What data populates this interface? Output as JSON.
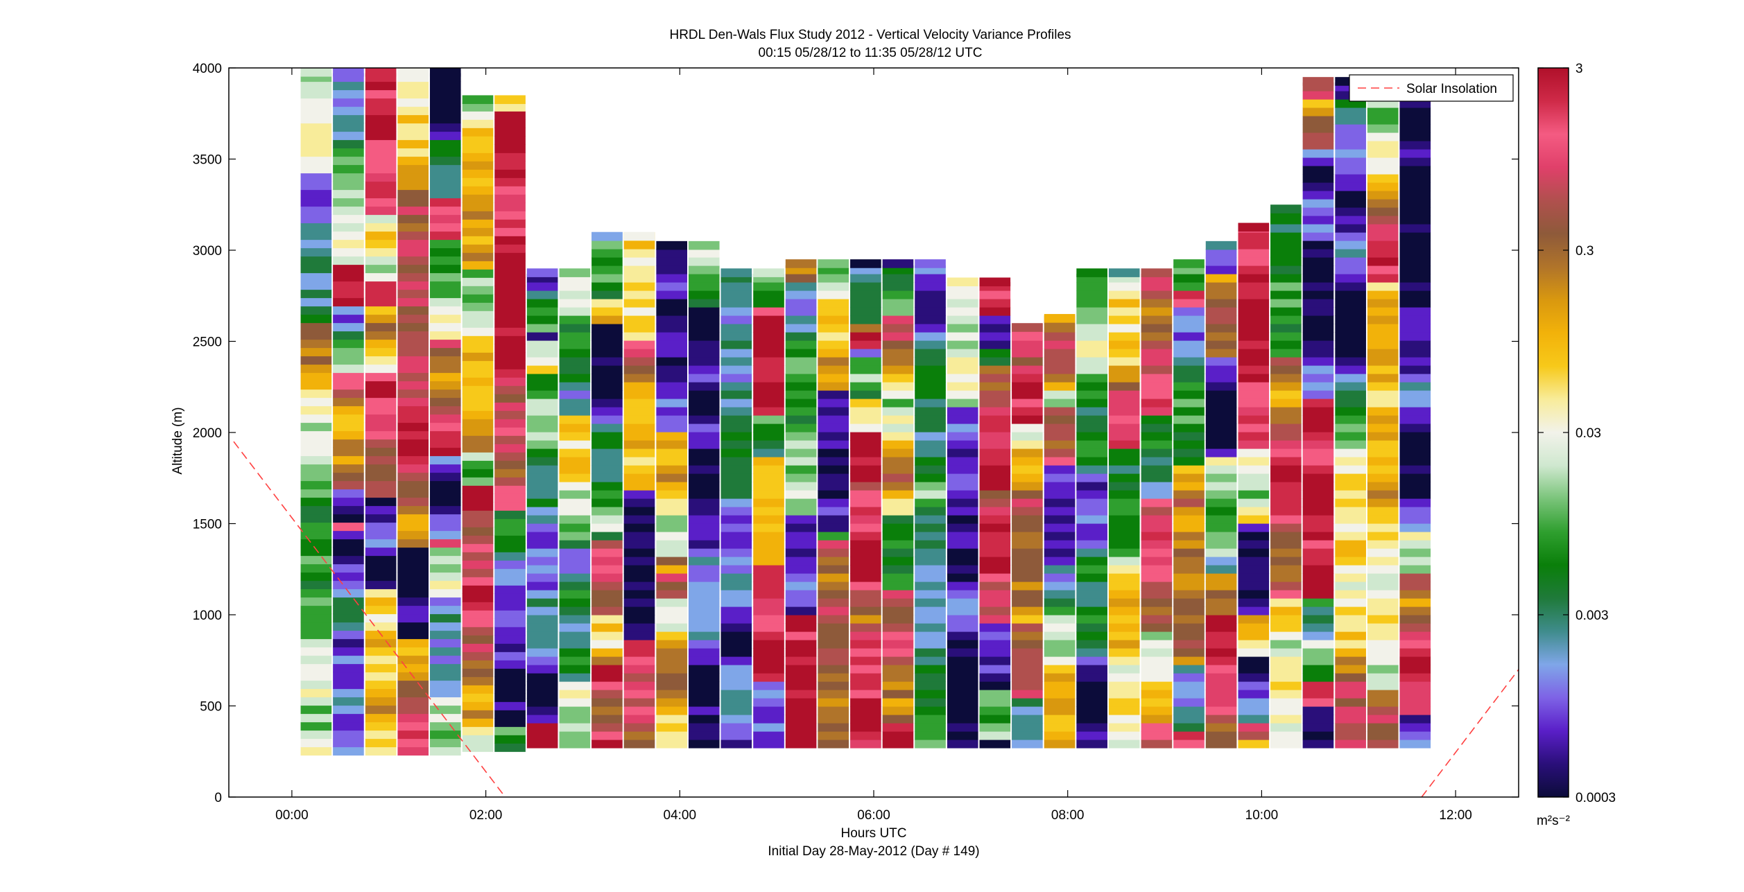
{
  "chart_data": {
    "type": "heatmap",
    "title": "HRDL Den-Wals Flux Study 2012 - Vertical Velocity Variance Profiles",
    "subtitle": "00:15 05/28/12 to 11:35 05/28/12  UTC",
    "xlabel": "Hours UTC",
    "xlabel2": "Initial Day 28-May-2012 (Day # 149)",
    "ylabel": "Altitude (m)",
    "xlim": [
      -0.65,
      12.65
    ],
    "ylim": [
      0,
      4000
    ],
    "x_ticks": [
      0,
      2,
      4,
      6,
      8,
      10,
      12
    ],
    "x_tick_labels": [
      "00:00",
      "02:00",
      "04:00",
      "06:00",
      "08:00",
      "10:00",
      "12:00"
    ],
    "y_ticks": [
      0,
      500,
      1000,
      1500,
      2000,
      2500,
      3000,
      3500,
      4000
    ],
    "y_tick_labels": [
      "0",
      "500",
      "1000",
      "1500",
      "2000",
      "2500",
      "3000",
      "3500",
      "4000"
    ],
    "colorbar": {
      "scale": "log",
      "range": [
        0.0003,
        3
      ],
      "ticks": [
        0.0003,
        0.003,
        0.03,
        0.3,
        3
      ],
      "tick_labels": [
        "0.0003",
        "0.003",
        "0.03",
        "0.3",
        "3"
      ],
      "unit_label": "m²s⁻²",
      "colors": [
        "#0c0c3a",
        "#2a0f7a",
        "#5a1fc8",
        "#7e63e6",
        "#7fa6e8",
        "#3f8c8c",
        "#1f7a3a",
        "#0a7f0a",
        "#2f9f2f",
        "#7ac47a",
        "#cfe8cf",
        "#f2f2ea",
        "#f8ec9a",
        "#f7c91a",
        "#f2b20a",
        "#d9980f",
        "#b0742a",
        "#8e5a3a",
        "#b0504e",
        "#e0406a",
        "#f45b82",
        "#cf2a48",
        "#b0102a"
      ]
    },
    "legend": {
      "entries": [
        "Solar Insolation"
      ],
      "placement": "top-right"
    },
    "profile_times_hours": [
      0.25,
      0.583,
      0.917,
      1.25,
      1.583,
      1.917,
      2.25,
      2.583,
      2.917,
      3.25,
      3.583,
      3.917,
      4.25,
      4.583,
      4.917,
      5.25,
      5.583,
      5.917,
      6.25,
      6.583,
      6.917,
      7.25,
      7.583,
      7.917,
      8.25,
      8.583,
      8.917,
      9.25,
      9.583,
      9.917,
      10.25,
      10.583,
      10.917,
      11.25,
      11.583
    ],
    "profile_bottom_m": [
      230,
      230,
      230,
      230,
      230,
      250,
      250,
      270,
      270,
      270,
      270,
      270,
      270,
      270,
      270,
      270,
      270,
      270,
      270,
      270,
      270,
      270,
      270,
      270,
      270,
      270,
      270,
      270,
      270,
      270,
      270,
      270,
      270,
      270,
      270
    ],
    "profile_top_m": [
      4000,
      4000,
      4000,
      4000,
      4000,
      3850,
      3850,
      2900,
      2900,
      3100,
      3100,
      3050,
      3050,
      2900,
      2900,
      2950,
      2950,
      2950,
      2950,
      2950,
      2850,
      2850,
      2600,
      2650,
      2900,
      2900,
      2900,
      2950,
      3050,
      3150,
      3250,
      3950,
      3950,
      3900,
      3900
    ],
    "solar_insolation": {
      "segments": [
        {
          "x": [
            -0.6,
            2.2
          ],
          "y": [
            1950,
            0
          ]
        },
        {
          "x": [
            11.65,
            12.65
          ],
          "y": [
            0,
            700
          ]
        }
      ]
    }
  }
}
